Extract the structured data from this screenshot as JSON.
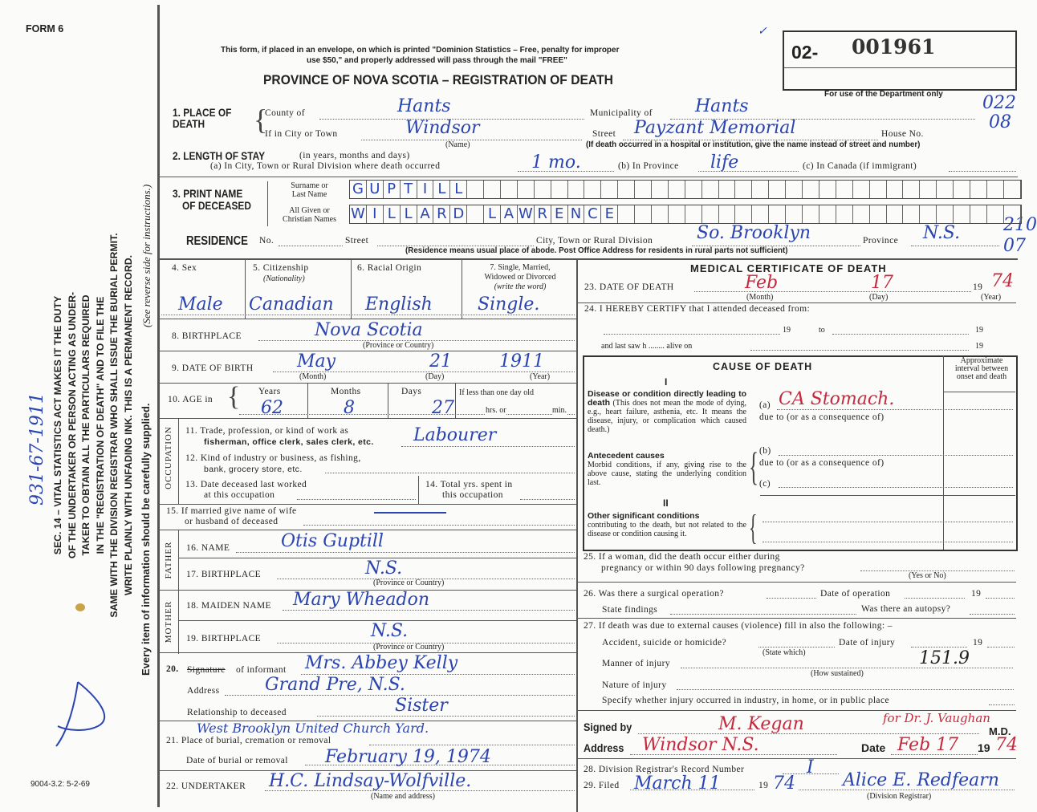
{
  "form_label": "FORM 6",
  "footer_code": "9004-3.2: 5-2-69",
  "margin": {
    "handwritten_ref": "931-67-1911",
    "instructions": [
      "SEC. 14 – VITAL STATISTICS ACT MAKES IT THE DUTY",
      "OF THE UNDERTAKER OR PERSON ACTING AS UNDER-",
      "TAKER TO OBTAIN ALL THE PARTICULARS REQUIRED",
      "IN THE \"REGISTRATION OF DEATH\" AND TO FILE THE",
      "SAME WITH THE DIVISION REGISTRAR WHO SHALL ISSUE THE BURIAL PERMIT.",
      "WRITE PLAINLY WITH UNFADING INK. THIS IS A PERMANENT RECORD."
    ],
    "every_item": "Every item of information should be carefully supplied.",
    "see_reverse": "(See reverse side for instructions.)"
  },
  "header": {
    "notice_line1": "This form, if placed in an envelope, on which is printed \"Dominion Statistics – Free, penalty for improper",
    "notice_line2": "use $50,\" and properly addressed will pass through the mail \"FREE\"",
    "title": "PROVINCE OF NOVA SCOTIA – REGISTRATION OF DEATH",
    "reg_prefix": "02-",
    "reg_number": "001961",
    "dept_only": "For use of the Department only",
    "dept_codes": [
      "022",
      "08",
      "210",
      "07"
    ]
  },
  "place_of_death": {
    "label": "1. PLACE OF DEATH",
    "county_label": "County of",
    "county": "Hants",
    "municipality_label": "Municipality of",
    "municipality": "Hants",
    "city_label": "If in City or Town",
    "city": "Windsor",
    "name_note": "(Name)",
    "street_label": "Street",
    "street": "Payzant Memorial",
    "house_label": "House No.",
    "hospital_note": "(If death occurred in a hospital or institution, give the name instead of street and number)"
  },
  "length_of_stay": {
    "label": "2. LENGTH OF STAY",
    "sub": "(in years, months and days)",
    "a_label": "(a) In City, Town or Rural Division where death occurred",
    "a": "1 mo.",
    "b_label": "(b) In Province",
    "b": "life",
    "c_label": "(c) In Canada (if immigrant)"
  },
  "name": {
    "label1": "3. PRINT NAME",
    "label2": "OF DECEASED",
    "surname_label1": "Surname or",
    "surname_label2": "Last Name",
    "given_label1": "All Given or",
    "given_label2": "Christian Names",
    "surname": "GUPTILL",
    "given": "WILLARD LAWRENCE"
  },
  "residence": {
    "label": "RESIDENCE",
    "no_label": "No.",
    "street_label": "Street",
    "city_label": "City, Town or Rural Division",
    "city": "So. Brooklyn",
    "province_label": "Province",
    "province": "N.S.",
    "note": "(Residence means usual place of abode. Post Office Address for residents in rural parts not sufficient)"
  },
  "personal": {
    "sex_label": "4. Sex",
    "sex": "Male",
    "citizenship_label": "5. Citizenship",
    "citizenship_sub": "(Nationality)",
    "citizenship": "Canadian",
    "racial_label": "6. Racial Origin",
    "racial": "English",
    "marital_label1": "7. Single, Married,",
    "marital_label2": "Widowed or Divorced",
    "marital_label3": "(write the word)",
    "marital": "Single.",
    "birthplace_label": "8. BIRTHPLACE",
    "birthplace": "Nova Scotia",
    "prov_note": "(Province or Country)",
    "dob_label": "9. DATE OF BIRTH",
    "dob_month": "May",
    "dob_day": "21",
    "dob_year": "1911",
    "month_note": "(Month)",
    "day_note": "(Day)",
    "year_note": "(Year)",
    "age_label": "10. AGE in",
    "years_label": "Years",
    "age_years": "62",
    "months_label": "Months",
    "age_months": "8",
    "days_label": "Days",
    "age_days": "27",
    "less_day": "If less than one day old",
    "hrs": "hrs. or",
    "min": "min."
  },
  "occupation": {
    "side": "OCCUPATION",
    "q11a": "11. Trade, profession, or kind of work as",
    "q11b": "fisherman, office clerk, sales clerk, etc.",
    "trade": "Labourer",
    "q12a": "12. Kind of industry or business, as fishing,",
    "q12b": "bank, grocery store, etc.",
    "q13a": "13. Date deceased last worked",
    "q13b": "at this occupation",
    "q14a": "14. Total yrs. spent in",
    "q14b": "this occupation",
    "q15a": "15. If married give name of wife",
    "q15b": "or husband of deceased",
    "spouse": "—"
  },
  "parents": {
    "father_side": "FATHER",
    "mother_side": "MOTHER",
    "q16": "16. NAME",
    "father_name": "Otis Guptill",
    "q17": "17. BIRTHPLACE",
    "father_birthplace": "N.S.",
    "q18": "18. MAIDEN NAME",
    "mother_name": "Mary Wheadon",
    "q19": "19. BIRTHPLACE",
    "mother_birthplace": "N.S.",
    "prov_note": "(Province or Country)"
  },
  "informant": {
    "q20_strike": "Signature",
    "q20": "of informant",
    "q20_num": "20.",
    "signature": "Mrs. Abbey Kelly",
    "address_label": "Address",
    "address": "Grand Pre, N.S.",
    "relation_label": "Relationship to deceased",
    "relation": "Sister"
  },
  "burial": {
    "q21": "21. Place of burial, cremation or removal",
    "place": "West Brooklyn United Church Yard.",
    "date_label": "Date of burial or removal",
    "date": "February 19, 1974",
    "q22": "22. UNDERTAKER",
    "undertaker": "H.C. Lindsay-Wolfville.",
    "undertaker_note": "(Name and address)"
  },
  "medical": {
    "title": "MEDICAL CERTIFICATE OF DEATH",
    "q23": "23. DATE OF DEATH",
    "death_month": "Feb",
    "death_day": "17",
    "death_year_prefix": "19",
    "death_year": "74",
    "q24": "24. I HEREBY CERTIFY that I attended deceased from:",
    "nineteen": "19",
    "to": "to",
    "last_saw": "and last saw h ........ alive on",
    "cause_title": "CAUSE OF DEATH",
    "interval": "Approximate interval between onset and death",
    "roman1": "I",
    "roman2": "II",
    "disease_bold": "Disease or condition directly leading to death",
    "disease_text": "(This does not mean the mode of dying, e.g., heart failure, asthenia, etc. It means the disease, injury, or complication which caused death.)",
    "a_label": "(a)",
    "cause_a": "CA Stomach.",
    "due_to": "due to (or as a consequence of)",
    "antecedent_bold": "Antecedent causes",
    "antecedent_text": "Morbid conditions, if any, giving rise to the above cause, stating the underlying condition last.",
    "b_label": "(b)",
    "c_label": "(c)",
    "other_bold": "Other significant conditions",
    "other_text": "contributing to the death, but not related to the disease or condition causing it.",
    "q25a": "25. If a woman, did the death occur either during",
    "q25b": "pregnancy or within 90 days following pregnancy?",
    "yes_no": "(Yes or No)",
    "q26": "26. Was there a surgical operation?",
    "op_date": "Date of operation",
    "findings": "State findings",
    "autopsy": "Was there an autopsy?",
    "q27": "27. If death was due to external causes (violence) fill in also the following: –",
    "accident": "Accident, suicide or homicide?",
    "state_which": "(State which)",
    "injury_date": "Date of injury",
    "manner": "Manner of injury",
    "manner_code": "151.9",
    "how": "(How sustained)",
    "nature": "Nature of injury",
    "specify": "Specify whether injury occurred in industry, in home, or in public place",
    "signed_label": "Signed by",
    "signed": "M. Kegan",
    "signed_for": "for Dr. J. Vaughan",
    "md": "M.D.",
    "address_label": "Address",
    "address": "Windsor N.S.",
    "date_label": "Date",
    "date": "Feb 17",
    "date_year": "74",
    "q28": "28. Division Registrar's Record Number",
    "record": "I",
    "q29": "29. Filed",
    "filed": "March 11",
    "filed_year": "74",
    "registrar": "Alice E. Redfearn",
    "registrar_note": "(Division Registrar)"
  },
  "colors": {
    "ink_blue": "#2a44b0",
    "ink_red": "#c42a3e",
    "print": "#222222",
    "paper": "#fbfbf9"
  }
}
